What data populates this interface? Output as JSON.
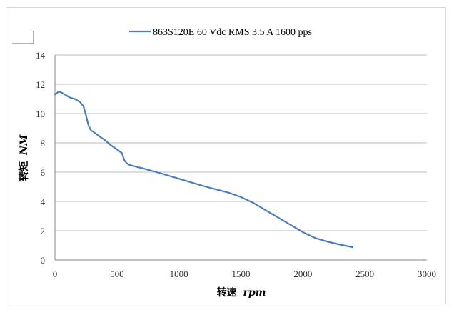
{
  "chart_data": {
    "type": "line",
    "title": "",
    "xlabel": "转速 rpm",
    "xlabel_parts": {
      "cn": "转速",
      "unit": "rpm"
    },
    "ylabel": "转矩 NM",
    "ylabel_parts": {
      "cn": "转矩",
      "unit": "NM"
    },
    "xlim": [
      0,
      3000
    ],
    "ylim": [
      0,
      14
    ],
    "x_ticks": [
      0,
      500,
      1000,
      1500,
      2000,
      2500,
      3000
    ],
    "y_ticks": [
      0,
      2,
      4,
      6,
      8,
      10,
      12,
      14
    ],
    "grid": "horizontal",
    "legend_position": "top",
    "colors": {
      "series": "#4a7ebb",
      "grid": "#bfbfbf",
      "axis": "#868686"
    },
    "series": [
      {
        "name": "863S120E 60 Vdc  RMS 3.5 A  1600    pps",
        "x": [
          0,
          30,
          50,
          80,
          120,
          160,
          200,
          230,
          250,
          270,
          290,
          310,
          350,
          400,
          450,
          500,
          540,
          560,
          580,
          600,
          650,
          700,
          800,
          900,
          1000,
          1100,
          1200,
          1300,
          1400,
          1500,
          1600,
          1700,
          1800,
          1900,
          2000,
          2100,
          2200,
          2300,
          2400
        ],
        "values": [
          11.3,
          11.5,
          11.45,
          11.3,
          11.1,
          11.0,
          10.8,
          10.5,
          9.9,
          9.2,
          8.85,
          8.75,
          8.5,
          8.2,
          7.85,
          7.55,
          7.3,
          6.8,
          6.6,
          6.5,
          6.38,
          6.28,
          6.05,
          5.8,
          5.55,
          5.3,
          5.05,
          4.82,
          4.6,
          4.3,
          3.9,
          3.4,
          2.9,
          2.4,
          1.9,
          1.5,
          1.25,
          1.05,
          0.88
        ]
      }
    ]
  }
}
